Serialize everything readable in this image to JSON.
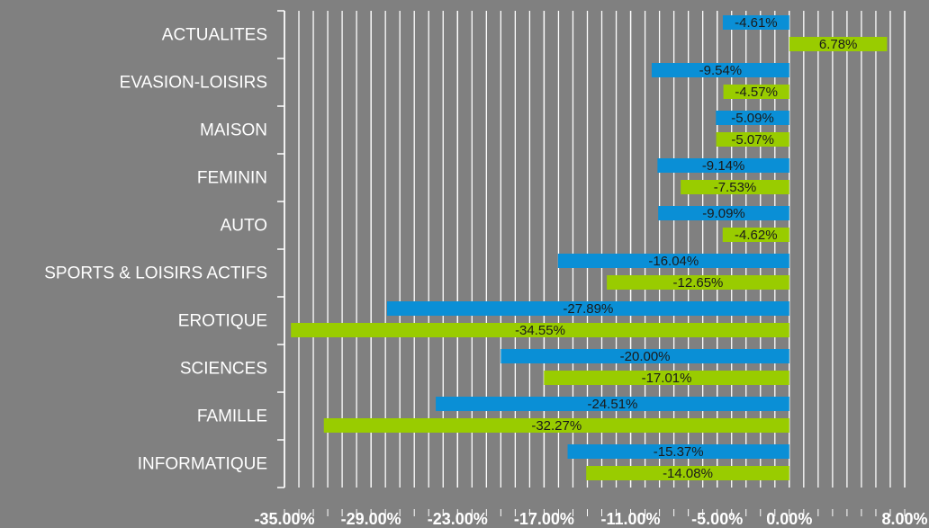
{
  "chart_data": {
    "type": "hbar",
    "categories": [
      "ACTUALITES",
      "EVASION-LOISIRS",
      "MAISON",
      "FEMININ",
      "AUTO",
      "SPORTS & LOISIRS ACTIFS",
      "EROTIQUE",
      "SCIENCES",
      "FAMILLE",
      "INFORMATIQUE"
    ],
    "series": [
      {
        "color": "#0a8fd6",
        "values": [
          -4.61,
          -9.54,
          -5.09,
          -9.14,
          -9.09,
          -16.04,
          -27.89,
          -20.0,
          -24.51,
          -15.37
        ],
        "value_labels": [
          "-4.61%",
          "-9.54%",
          "-5.09%",
          "-9.14%",
          "-9.09%",
          "-16.04%",
          "-27.89%",
          "-20.00%",
          "-24.51%",
          "-15.37%"
        ]
      },
      {
        "color": "#99cc00",
        "values": [
          6.78,
          -4.57,
          -5.07,
          -7.53,
          -4.62,
          -12.65,
          -34.55,
          -17.01,
          -32.27,
          -14.08
        ],
        "value_labels": [
          "6.78%",
          "-4.57%",
          "-5.07%",
          "-7.53%",
          "-4.62%",
          "-12.65%",
          "-34.55%",
          "-17.01%",
          "-32.27%",
          "-14.08%"
        ]
      }
    ],
    "xlim": [
      -35,
      8
    ],
    "xticks": [
      {
        "value": -35,
        "label": "-35.00%"
      },
      {
        "value": -29,
        "label": "-29.00%"
      },
      {
        "value": -23,
        "label": "-23.00%"
      },
      {
        "value": -17,
        "label": "-17.00%"
      },
      {
        "value": -11,
        "label": "-11.00%"
      },
      {
        "value": -5,
        "label": "-5.00%"
      },
      {
        "value": 0,
        "label": "0.00%"
      },
      {
        "value": 8,
        "label": "8.00%"
      }
    ],
    "grid": true
  }
}
